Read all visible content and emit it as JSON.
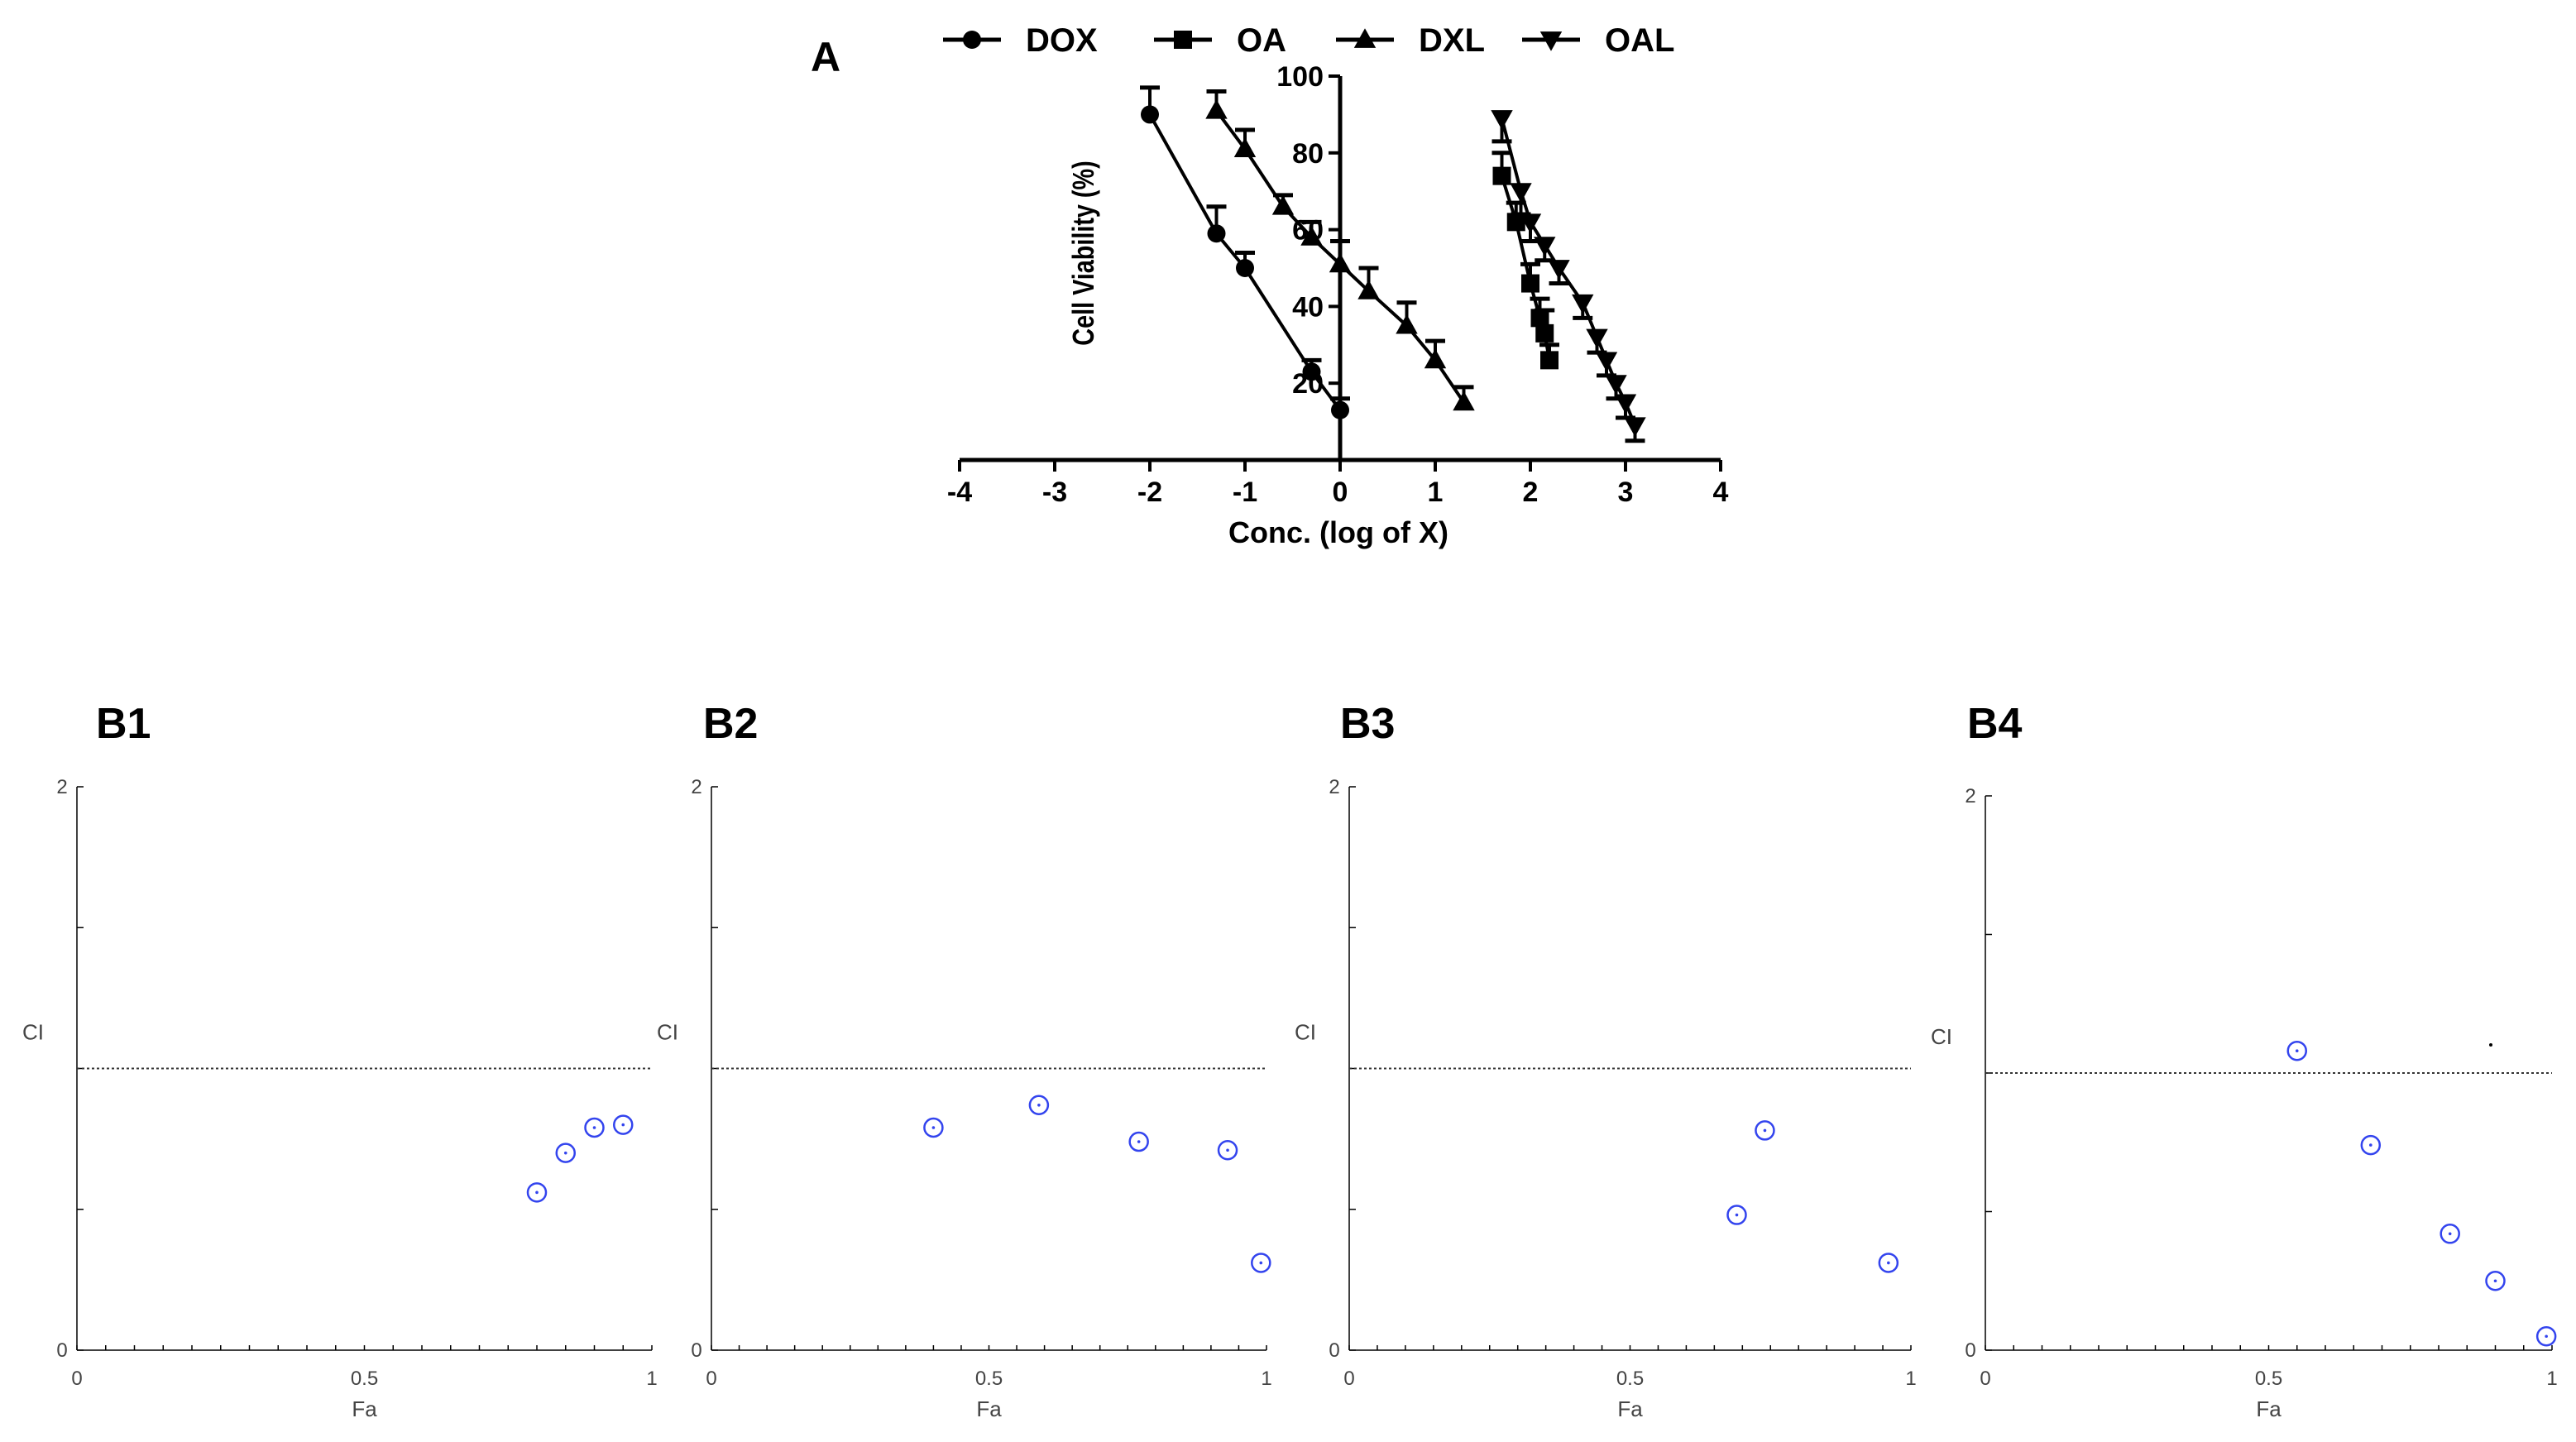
{
  "panel_labels": {
    "a": "A",
    "b1": "B1",
    "b2": "B2",
    "b3": "B3",
    "b4": "B4"
  },
  "chart_data": [
    {
      "id": "A",
      "type": "line",
      "title": "",
      "xlabel": "Conc. (log of X)",
      "ylabel": "Cell Viability (%)",
      "xlim": [
        -4,
        4
      ],
      "ylim": [
        0,
        100
      ],
      "xticks": [
        -4,
        -3,
        -2,
        -1,
        0,
        1,
        2,
        3,
        4
      ],
      "yticks": [
        20,
        40,
        60,
        80,
        100
      ],
      "legend_position": "top",
      "series": [
        {
          "name": "DOX",
          "marker": "circle",
          "x": [
            -2.0,
            -1.3,
            -1.0,
            -0.3,
            0.0
          ],
          "y": [
            90,
            59,
            50,
            23,
            13
          ],
          "err": [
            7,
            7,
            4,
            3,
            3
          ]
        },
        {
          "name": "OA",
          "marker": "square",
          "x": [
            1.7,
            1.85,
            2.0,
            2.1,
            2.15,
            2.2
          ],
          "y": [
            74,
            62,
            46,
            37,
            33,
            26
          ],
          "err": [
            6,
            5,
            5,
            5,
            6,
            4
          ]
        },
        {
          "name": "DXL",
          "marker": "triangle-up",
          "x": [
            -1.3,
            -1.0,
            -0.6,
            -0.3,
            0.0,
            0.3,
            0.7,
            1.0,
            1.3
          ],
          "y": [
            91,
            81,
            66,
            58,
            51,
            44,
            35,
            26,
            15
          ],
          "err": [
            5,
            5,
            3,
            4,
            6,
            6,
            6,
            5,
            4
          ]
        },
        {
          "name": "OAL",
          "marker": "triangle-down",
          "x": [
            1.7,
            1.9,
            2.0,
            2.15,
            2.3,
            2.55,
            2.7,
            2.8,
            2.9,
            3.0,
            3.1
          ],
          "y": [
            89,
            70,
            62,
            56,
            50,
            41,
            32,
            26,
            20,
            15,
            9
          ],
          "err": [
            6,
            6,
            5,
            4,
            4,
            4,
            4,
            4,
            4,
            4,
            4
          ]
        }
      ]
    },
    {
      "id": "B1",
      "type": "scatter",
      "xlabel": "Fa",
      "ylabel": "CI",
      "xlim": [
        0,
        1
      ],
      "ylim": [
        0,
        2
      ],
      "xtick_labels": [
        "0",
        "0.5",
        "1"
      ],
      "ytick_labels": [
        "0",
        "2"
      ],
      "reference_line": 1,
      "points": [
        {
          "x": 0.8,
          "y": 0.56
        },
        {
          "x": 0.85,
          "y": 0.7
        },
        {
          "x": 0.9,
          "y": 0.79
        },
        {
          "x": 0.95,
          "y": 0.8
        }
      ]
    },
    {
      "id": "B2",
      "type": "scatter",
      "xlabel": "Fa",
      "ylabel": "CI",
      "xlim": [
        0,
        1
      ],
      "ylim": [
        0,
        2
      ],
      "xtick_labels": [
        "0",
        "0.5",
        "1"
      ],
      "ytick_labels": [
        "0",
        "2"
      ],
      "reference_line": 1,
      "points": [
        {
          "x": 0.4,
          "y": 0.79
        },
        {
          "x": 0.59,
          "y": 0.87
        },
        {
          "x": 0.77,
          "y": 0.74
        },
        {
          "x": 0.93,
          "y": 0.71
        },
        {
          "x": 0.99,
          "y": 0.31
        }
      ]
    },
    {
      "id": "B3",
      "type": "scatter",
      "xlabel": "Fa",
      "ylabel": "CI",
      "xlim": [
        0,
        1
      ],
      "ylim": [
        0,
        2
      ],
      "xtick_labels": [
        "0",
        "0.5",
        "1"
      ],
      "ytick_labels": [
        "0",
        "2"
      ],
      "reference_line": 1,
      "points": [
        {
          "x": 0.69,
          "y": 0.48
        },
        {
          "x": 0.74,
          "y": 0.78
        },
        {
          "x": 0.96,
          "y": 0.31
        }
      ]
    },
    {
      "id": "B4",
      "type": "scatter",
      "xlabel": "Fa",
      "ylabel": "CI",
      "xlim": [
        0,
        1
      ],
      "ylim": [
        0,
        2
      ],
      "xtick_labels": [
        "0",
        "0.5",
        "1"
      ],
      "ytick_labels": [
        "0",
        "2"
      ],
      "reference_line": 1,
      "points": [
        {
          "x": 0.55,
          "y": 1.08
        },
        {
          "x": 0.68,
          "y": 0.74
        },
        {
          "x": 0.82,
          "y": 0.42
        },
        {
          "x": 0.9,
          "y": 0.25
        },
        {
          "x": 0.99,
          "y": 0.05
        }
      ]
    }
  ]
}
